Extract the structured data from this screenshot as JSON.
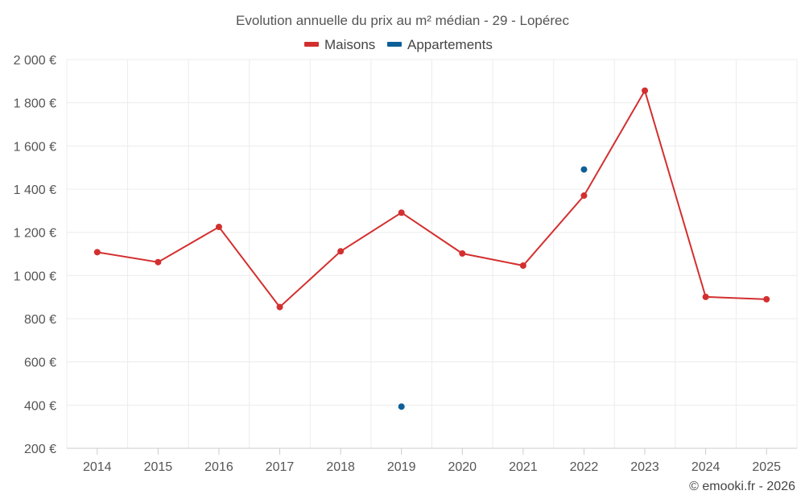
{
  "chart_data": {
    "type": "line",
    "title": "Evolution annuelle du prix au m² médian - 29 - Lopérec",
    "categories": [
      "2014",
      "2015",
      "2016",
      "2017",
      "2018",
      "2019",
      "2020",
      "2021",
      "2022",
      "2023",
      "2024",
      "2025"
    ],
    "series": [
      {
        "name": "Maisons",
        "color": "#d32f2f",
        "values": [
          1108,
          1062,
          1225,
          854,
          1112,
          1291,
          1102,
          1046,
          1370,
          1856,
          901,
          890
        ]
      },
      {
        "name": "Appartements",
        "color": "#0d5f97",
        "values": [
          null,
          null,
          null,
          null,
          null,
          393,
          null,
          null,
          1491,
          null,
          null,
          null
        ]
      }
    ],
    "ylim": [
      200,
      2000
    ],
    "yticks": [
      200,
      400,
      600,
      800,
      1000,
      1200,
      1400,
      1600,
      1800,
      2000
    ],
    "ytick_labels": [
      "200 €",
      "400 €",
      "600 €",
      "800 €",
      "1 000 €",
      "1 200 €",
      "1 400 €",
      "1 600 €",
      "1 800 €",
      "2 000 €"
    ],
    "xlabel": "",
    "ylabel": "",
    "grid": true,
    "legend": "top-center",
    "credit": "© emooki.fr - 2026"
  }
}
